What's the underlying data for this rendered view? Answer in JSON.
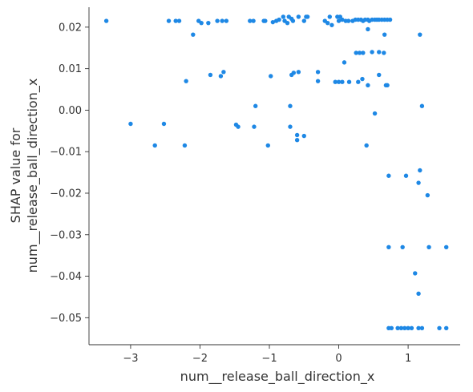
{
  "chart_data": {
    "type": "scatter",
    "title": "",
    "xlabel": "num__release_ball_direction_x",
    "ylabel_lines": [
      "SHAP value for",
      "num__release_ball_direction_x"
    ],
    "xlim": [
      -3.6,
      1.75
    ],
    "ylim": [
      -0.0565,
      0.0248
    ],
    "xticks": [
      -3,
      -2,
      -1,
      0,
      1
    ],
    "xtick_labels": [
      "−3",
      "−2",
      "−1",
      "0",
      "1"
    ],
    "yticks": [
      0.02,
      0.01,
      0.0,
      -0.01,
      -0.02,
      -0.03,
      -0.04,
      -0.05
    ],
    "ytick_labels": [
      "0.02",
      "0.01",
      "0.00",
      "−0.01",
      "−0.02",
      "−0.03",
      "−0.04",
      "−0.05"
    ],
    "grid": false,
    "point_color": "#1e88e5",
    "points": [
      [
        -3.35,
        0.0215
      ],
      [
        -2.45,
        0.0215
      ],
      [
        -2.35,
        0.0215
      ],
      [
        -2.3,
        0.0215
      ],
      [
        -2.1,
        0.0182
      ],
      [
        -2.02,
        0.0215
      ],
      [
        -1.98,
        0.021
      ],
      [
        -1.88,
        0.021
      ],
      [
        -1.75,
        0.0215
      ],
      [
        -1.68,
        0.0215
      ],
      [
        -1.62,
        0.0215
      ],
      [
        -1.28,
        0.0215
      ],
      [
        -1.23,
        0.0215
      ],
      [
        -1.08,
        0.0215
      ],
      [
        -1.06,
        0.0215
      ],
      [
        -0.95,
        0.0212
      ],
      [
        -0.9,
        0.0215
      ],
      [
        -0.86,
        0.0218
      ],
      [
        -0.8,
        0.0225
      ],
      [
        -0.78,
        0.0215
      ],
      [
        -0.74,
        0.021
      ],
      [
        -0.72,
        0.0225
      ],
      [
        -0.68,
        0.022
      ],
      [
        -0.66,
        0.0215
      ],
      [
        -0.58,
        0.0225
      ],
      [
        -0.5,
        0.0215
      ],
      [
        -0.47,
        0.0225
      ],
      [
        -0.45,
        0.0225
      ],
      [
        -0.2,
        0.0215
      ],
      [
        -0.16,
        0.021
      ],
      [
        -0.13,
        0.0225
      ],
      [
        -0.1,
        0.0205
      ],
      [
        -0.02,
        0.0225
      ],
      [
        0.0,
        0.0215
      ],
      [
        0.02,
        0.0225
      ],
      [
        0.05,
        0.0218
      ],
      [
        0.1,
        0.0215
      ],
      [
        0.14,
        0.0215
      ],
      [
        0.2,
        0.0215
      ],
      [
        0.24,
        0.0218
      ],
      [
        0.28,
        0.0218
      ],
      [
        0.32,
        0.0218
      ],
      [
        0.35,
        0.0215
      ],
      [
        0.38,
        0.0218
      ],
      [
        0.42,
        0.0218
      ],
      [
        0.44,
        0.0215
      ],
      [
        0.48,
        0.0218
      ],
      [
        0.52,
        0.0218
      ],
      [
        0.55,
        0.0218
      ],
      [
        0.58,
        0.0218
      ],
      [
        0.62,
        0.0218
      ],
      [
        0.66,
        0.0218
      ],
      [
        0.7,
        0.0218
      ],
      [
        0.74,
        0.0218
      ],
      [
        0.42,
        0.0195
      ],
      [
        0.66,
        0.0182
      ],
      [
        1.17,
        0.0182
      ],
      [
        0.25,
        0.0138
      ],
      [
        0.3,
        0.0138
      ],
      [
        0.35,
        0.0138
      ],
      [
        0.48,
        0.014
      ],
      [
        0.58,
        0.014
      ],
      [
        0.65,
        0.0138
      ],
      [
        0.08,
        0.0115
      ],
      [
        0.58,
        0.0085
      ],
      [
        0.68,
        0.006
      ],
      [
        0.7,
        0.006
      ],
      [
        -2.2,
        0.007
      ],
      [
        -1.85,
        0.0085
      ],
      [
        -1.7,
        0.0082
      ],
      [
        -1.66,
        0.0092
      ],
      [
        -0.98,
        0.0082
      ],
      [
        -0.68,
        0.0085
      ],
      [
        -0.65,
        0.009
      ],
      [
        -0.58,
        0.0092
      ],
      [
        -0.3,
        0.0092
      ],
      [
        -0.3,
        0.007
      ],
      [
        -0.05,
        0.0068
      ],
      [
        0.0,
        0.0068
      ],
      [
        0.05,
        0.0068
      ],
      [
        0.15,
        0.0068
      ],
      [
        0.28,
        0.0068
      ],
      [
        0.34,
        0.0075
      ],
      [
        0.42,
        0.006
      ],
      [
        -1.2,
        0.001
      ],
      [
        -0.7,
        0.001
      ],
      [
        0.52,
        -0.0008
      ],
      [
        1.2,
        0.001
      ],
      [
        -3.0,
        -0.0033
      ],
      [
        -2.65,
        -0.0085
      ],
      [
        -2.52,
        -0.0033
      ],
      [
        -2.22,
        -0.0085
      ],
      [
        -1.48,
        -0.0035
      ],
      [
        -1.45,
        -0.004
      ],
      [
        -1.22,
        -0.004
      ],
      [
        -1.02,
        -0.0085
      ],
      [
        -0.7,
        -0.004
      ],
      [
        -0.6,
        -0.006
      ],
      [
        -0.6,
        -0.0072
      ],
      [
        -0.5,
        -0.0062
      ],
      [
        0.4,
        -0.0085
      ],
      [
        0.72,
        -0.0158
      ],
      [
        0.97,
        -0.0158
      ],
      [
        1.17,
        -0.0145
      ],
      [
        1.15,
        -0.0175
      ],
      [
        1.28,
        -0.0205
      ],
      [
        0.72,
        -0.033
      ],
      [
        0.92,
        -0.033
      ],
      [
        1.3,
        -0.033
      ],
      [
        1.55,
        -0.033
      ],
      [
        1.1,
        -0.0393
      ],
      [
        1.15,
        -0.0442
      ],
      [
        0.72,
        -0.0525
      ],
      [
        0.76,
        -0.0525
      ],
      [
        0.85,
        -0.0525
      ],
      [
        0.9,
        -0.0525
      ],
      [
        0.95,
        -0.0525
      ],
      [
        1.0,
        -0.0525
      ],
      [
        1.05,
        -0.0525
      ],
      [
        1.15,
        -0.0525
      ],
      [
        1.2,
        -0.0525
      ],
      [
        1.45,
        -0.0525
      ],
      [
        1.55,
        -0.0525
      ]
    ]
  }
}
